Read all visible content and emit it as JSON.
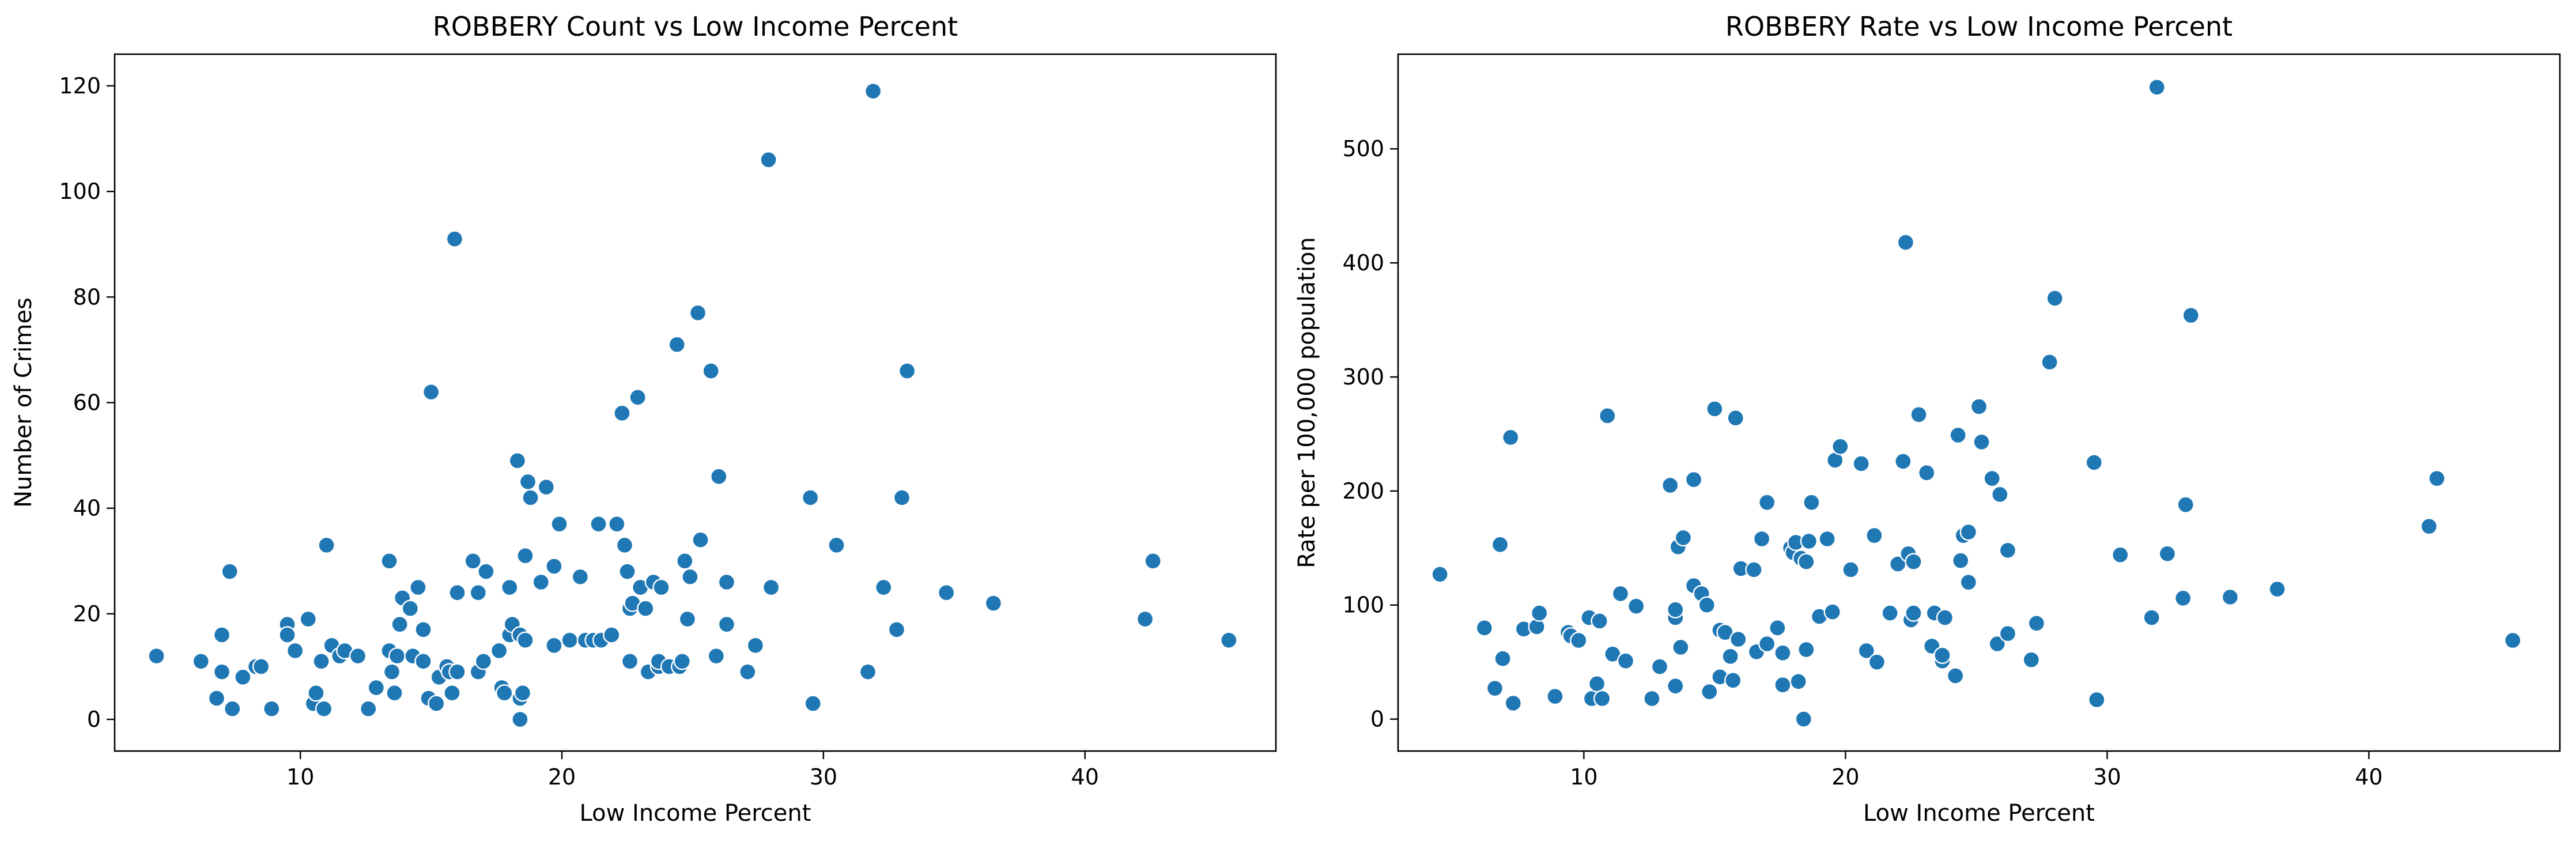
{
  "chart_data": [
    {
      "type": "scatter",
      "title": "ROBBERY Count vs Low Income Percent",
      "xlabel": "Low Income Percent",
      "ylabel": "Number of Crimes",
      "xlim": [
        2.9,
        47.3
      ],
      "ylim": [
        -6,
        126
      ],
      "xticks": [
        10,
        20,
        30,
        40
      ],
      "yticks": [
        0,
        20,
        40,
        60,
        80,
        100,
        120
      ],
      "grid": false,
      "color": "#1f77b4",
      "points": [
        {
          "x": 4.5,
          "y": 12
        },
        {
          "x": 6.2,
          "y": 11
        },
        {
          "x": 6.8,
          "y": 4
        },
        {
          "x": 7.0,
          "y": 16
        },
        {
          "x": 7.0,
          "y": 9
        },
        {
          "x": 7.3,
          "y": 28
        },
        {
          "x": 7.4,
          "y": 2
        },
        {
          "x": 7.8,
          "y": 8
        },
        {
          "x": 8.3,
          "y": 10
        },
        {
          "x": 8.5,
          "y": 10
        },
        {
          "x": 8.9,
          "y": 2
        },
        {
          "x": 9.5,
          "y": 18
        },
        {
          "x": 9.5,
          "y": 16
        },
        {
          "x": 9.8,
          "y": 13
        },
        {
          "x": 10.3,
          "y": 19
        },
        {
          "x": 10.5,
          "y": 3
        },
        {
          "x": 10.6,
          "y": 5
        },
        {
          "x": 10.8,
          "y": 11
        },
        {
          "x": 10.9,
          "y": 2
        },
        {
          "x": 11.0,
          "y": 33
        },
        {
          "x": 11.2,
          "y": 14
        },
        {
          "x": 11.5,
          "y": 12
        },
        {
          "x": 11.7,
          "y": 13
        },
        {
          "x": 12.2,
          "y": 12
        },
        {
          "x": 12.6,
          "y": 2
        },
        {
          "x": 12.9,
          "y": 6
        },
        {
          "x": 13.4,
          "y": 30
        },
        {
          "x": 13.4,
          "y": 13
        },
        {
          "x": 13.5,
          "y": 9
        },
        {
          "x": 13.6,
          "y": 5
        },
        {
          "x": 13.7,
          "y": 12
        },
        {
          "x": 13.8,
          "y": 18
        },
        {
          "x": 13.9,
          "y": 23
        },
        {
          "x": 14.2,
          "y": 21
        },
        {
          "x": 14.3,
          "y": 12
        },
        {
          "x": 14.5,
          "y": 25
        },
        {
          "x": 14.7,
          "y": 11
        },
        {
          "x": 14.7,
          "y": 17
        },
        {
          "x": 14.9,
          "y": 4
        },
        {
          "x": 15.0,
          "y": 62
        },
        {
          "x": 15.2,
          "y": 3
        },
        {
          "x": 15.3,
          "y": 8
        },
        {
          "x": 15.6,
          "y": 10
        },
        {
          "x": 15.7,
          "y": 9
        },
        {
          "x": 15.8,
          "y": 5
        },
        {
          "x": 15.9,
          "y": 91
        },
        {
          "x": 16.0,
          "y": 24
        },
        {
          "x": 16.0,
          "y": 9
        },
        {
          "x": 16.6,
          "y": 30
        },
        {
          "x": 16.8,
          "y": 24
        },
        {
          "x": 16.8,
          "y": 9
        },
        {
          "x": 17.0,
          "y": 11
        },
        {
          "x": 17.1,
          "y": 28
        },
        {
          "x": 17.6,
          "y": 13
        },
        {
          "x": 17.7,
          "y": 6
        },
        {
          "x": 17.8,
          "y": 5
        },
        {
          "x": 18.0,
          "y": 16
        },
        {
          "x": 18.0,
          "y": 25
        },
        {
          "x": 18.1,
          "y": 18
        },
        {
          "x": 18.3,
          "y": 49
        },
        {
          "x": 18.4,
          "y": 16
        },
        {
          "x": 18.4,
          "y": 4
        },
        {
          "x": 18.4,
          "y": 0
        },
        {
          "x": 18.5,
          "y": 5
        },
        {
          "x": 18.6,
          "y": 15
        },
        {
          "x": 18.6,
          "y": 31
        },
        {
          "x": 18.7,
          "y": 45
        },
        {
          "x": 18.8,
          "y": 42
        },
        {
          "x": 19.2,
          "y": 26
        },
        {
          "x": 19.4,
          "y": 44
        },
        {
          "x": 19.7,
          "y": 14
        },
        {
          "x": 19.7,
          "y": 29
        },
        {
          "x": 19.9,
          "y": 37
        },
        {
          "x": 20.3,
          "y": 15
        },
        {
          "x": 20.7,
          "y": 27
        },
        {
          "x": 20.9,
          "y": 15
        },
        {
          "x": 21.2,
          "y": 15
        },
        {
          "x": 21.4,
          "y": 37
        },
        {
          "x": 21.5,
          "y": 15
        },
        {
          "x": 21.9,
          "y": 16
        },
        {
          "x": 22.1,
          "y": 37
        },
        {
          "x": 22.3,
          "y": 58
        },
        {
          "x": 22.4,
          "y": 33
        },
        {
          "x": 22.5,
          "y": 28
        },
        {
          "x": 22.6,
          "y": 11
        },
        {
          "x": 22.6,
          "y": 21
        },
        {
          "x": 22.7,
          "y": 22
        },
        {
          "x": 22.9,
          "y": 61
        },
        {
          "x": 23.0,
          "y": 25
        },
        {
          "x": 23.2,
          "y": 21
        },
        {
          "x": 23.3,
          "y": 9
        },
        {
          "x": 23.5,
          "y": 26
        },
        {
          "x": 23.7,
          "y": 10
        },
        {
          "x": 23.7,
          "y": 11
        },
        {
          "x": 23.8,
          "y": 25
        },
        {
          "x": 24.1,
          "y": 10
        },
        {
          "x": 24.4,
          "y": 71
        },
        {
          "x": 24.5,
          "y": 10
        },
        {
          "x": 24.6,
          "y": 11
        },
        {
          "x": 24.7,
          "y": 30
        },
        {
          "x": 24.8,
          "y": 19
        },
        {
          "x": 24.9,
          "y": 27
        },
        {
          "x": 25.2,
          "y": 77
        },
        {
          "x": 25.3,
          "y": 34
        },
        {
          "x": 25.7,
          "y": 66
        },
        {
          "x": 25.9,
          "y": 12
        },
        {
          "x": 26.0,
          "y": 46
        },
        {
          "x": 26.3,
          "y": 26
        },
        {
          "x": 26.3,
          "y": 18
        },
        {
          "x": 27.1,
          "y": 9
        },
        {
          "x": 27.4,
          "y": 14
        },
        {
          "x": 27.9,
          "y": 106
        },
        {
          "x": 28.0,
          "y": 25
        },
        {
          "x": 29.5,
          "y": 42
        },
        {
          "x": 29.6,
          "y": 3
        },
        {
          "x": 30.5,
          "y": 33
        },
        {
          "x": 31.7,
          "y": 9
        },
        {
          "x": 31.9,
          "y": 119
        },
        {
          "x": 32.3,
          "y": 25
        },
        {
          "x": 32.8,
          "y": 17
        },
        {
          "x": 33.0,
          "y": 42
        },
        {
          "x": 33.2,
          "y": 66
        },
        {
          "x": 34.7,
          "y": 24
        },
        {
          "x": 36.5,
          "y": 22
        },
        {
          "x": 42.3,
          "y": 19
        },
        {
          "x": 42.6,
          "y": 30
        },
        {
          "x": 45.5,
          "y": 15
        }
      ]
    },
    {
      "type": "scatter",
      "title": "ROBBERY Rate vs Low Income Percent",
      "xlabel": "Low Income Percent",
      "ylabel": "Rate per 100,000 population",
      "xlim": [
        2.9,
        47.3
      ],
      "ylim": [
        -28,
        583
      ],
      "xticks": [
        10,
        20,
        30,
        40
      ],
      "yticks": [
        0,
        100,
        200,
        300,
        400,
        500
      ],
      "grid": false,
      "color": "#1f77b4",
      "points": [
        {
          "x": 4.5,
          "y": 127
        },
        {
          "x": 6.2,
          "y": 80
        },
        {
          "x": 6.6,
          "y": 27
        },
        {
          "x": 6.8,
          "y": 153
        },
        {
          "x": 6.9,
          "y": 53
        },
        {
          "x": 7.2,
          "y": 247
        },
        {
          "x": 7.3,
          "y": 14
        },
        {
          "x": 7.7,
          "y": 79
        },
        {
          "x": 8.2,
          "y": 81
        },
        {
          "x": 8.3,
          "y": 93
        },
        {
          "x": 8.9,
          "y": 20
        },
        {
          "x": 9.4,
          "y": 76
        },
        {
          "x": 9.5,
          "y": 73
        },
        {
          "x": 9.8,
          "y": 69
        },
        {
          "x": 10.2,
          "y": 89
        },
        {
          "x": 10.3,
          "y": 18
        },
        {
          "x": 10.5,
          "y": 31
        },
        {
          "x": 10.6,
          "y": 86
        },
        {
          "x": 10.7,
          "y": 18
        },
        {
          "x": 10.9,
          "y": 266
        },
        {
          "x": 11.1,
          "y": 57
        },
        {
          "x": 11.4,
          "y": 110
        },
        {
          "x": 11.6,
          "y": 51
        },
        {
          "x": 12.0,
          "y": 99
        },
        {
          "x": 12.6,
          "y": 18
        },
        {
          "x": 12.9,
          "y": 46
        },
        {
          "x": 13.3,
          "y": 205
        },
        {
          "x": 13.5,
          "y": 89
        },
        {
          "x": 13.5,
          "y": 96
        },
        {
          "x": 13.5,
          "y": 29
        },
        {
          "x": 13.6,
          "y": 151
        },
        {
          "x": 13.7,
          "y": 63
        },
        {
          "x": 13.8,
          "y": 159
        },
        {
          "x": 14.2,
          "y": 210
        },
        {
          "x": 14.2,
          "y": 117
        },
        {
          "x": 14.5,
          "y": 110
        },
        {
          "x": 14.7,
          "y": 100
        },
        {
          "x": 14.8,
          "y": 24
        },
        {
          "x": 15.0,
          "y": 272
        },
        {
          "x": 15.2,
          "y": 37
        },
        {
          "x": 15.2,
          "y": 78
        },
        {
          "x": 15.4,
          "y": 76
        },
        {
          "x": 15.6,
          "y": 55
        },
        {
          "x": 15.7,
          "y": 34
        },
        {
          "x": 15.8,
          "y": 264
        },
        {
          "x": 15.9,
          "y": 70
        },
        {
          "x": 16.0,
          "y": 132
        },
        {
          "x": 16.5,
          "y": 131
        },
        {
          "x": 16.6,
          "y": 59
        },
        {
          "x": 16.8,
          "y": 158
        },
        {
          "x": 17.0,
          "y": 190
        },
        {
          "x": 17.0,
          "y": 66
        },
        {
          "x": 17.4,
          "y": 80
        },
        {
          "x": 17.6,
          "y": 30
        },
        {
          "x": 17.6,
          "y": 58
        },
        {
          "x": 17.9,
          "y": 150
        },
        {
          "x": 18.0,
          "y": 146
        },
        {
          "x": 18.1,
          "y": 155
        },
        {
          "x": 18.2,
          "y": 33
        },
        {
          "x": 18.3,
          "y": 141
        },
        {
          "x": 18.4,
          "y": 0
        },
        {
          "x": 18.5,
          "y": 138
        },
        {
          "x": 18.5,
          "y": 61
        },
        {
          "x": 18.6,
          "y": 156
        },
        {
          "x": 18.7,
          "y": 190
        },
        {
          "x": 19.0,
          "y": 90
        },
        {
          "x": 19.3,
          "y": 158
        },
        {
          "x": 19.5,
          "y": 94
        },
        {
          "x": 19.6,
          "y": 227
        },
        {
          "x": 19.8,
          "y": 239
        },
        {
          "x": 20.2,
          "y": 131
        },
        {
          "x": 20.6,
          "y": 224
        },
        {
          "x": 20.8,
          "y": 60
        },
        {
          "x": 21.1,
          "y": 161
        },
        {
          "x": 21.2,
          "y": 50
        },
        {
          "x": 21.7,
          "y": 93
        },
        {
          "x": 22.0,
          "y": 136
        },
        {
          "x": 22.2,
          "y": 226
        },
        {
          "x": 22.3,
          "y": 418
        },
        {
          "x": 22.4,
          "y": 145
        },
        {
          "x": 22.5,
          "y": 87
        },
        {
          "x": 22.6,
          "y": 93
        },
        {
          "x": 22.6,
          "y": 138
        },
        {
          "x": 22.8,
          "y": 267
        },
        {
          "x": 23.1,
          "y": 216
        },
        {
          "x": 23.3,
          "y": 64
        },
        {
          "x": 23.4,
          "y": 93
        },
        {
          "x": 23.7,
          "y": 51
        },
        {
          "x": 23.7,
          "y": 56
        },
        {
          "x": 23.8,
          "y": 89
        },
        {
          "x": 24.2,
          "y": 38
        },
        {
          "x": 24.3,
          "y": 249
        },
        {
          "x": 24.4,
          "y": 139
        },
        {
          "x": 24.5,
          "y": 161
        },
        {
          "x": 24.7,
          "y": 164
        },
        {
          "x": 24.7,
          "y": 120
        },
        {
          "x": 25.1,
          "y": 274
        },
        {
          "x": 25.2,
          "y": 243
        },
        {
          "x": 25.6,
          "y": 211
        },
        {
          "x": 25.8,
          "y": 66
        },
        {
          "x": 25.9,
          "y": 197
        },
        {
          "x": 26.2,
          "y": 148
        },
        {
          "x": 26.2,
          "y": 75
        },
        {
          "x": 27.1,
          "y": 52
        },
        {
          "x": 27.3,
          "y": 84
        },
        {
          "x": 27.8,
          "y": 313
        },
        {
          "x": 28.0,
          "y": 369
        },
        {
          "x": 29.5,
          "y": 225
        },
        {
          "x": 29.6,
          "y": 17
        },
        {
          "x": 30.5,
          "y": 144
        },
        {
          "x": 31.7,
          "y": 89
        },
        {
          "x": 31.9,
          "y": 554
        },
        {
          "x": 32.3,
          "y": 145
        },
        {
          "x": 32.9,
          "y": 106
        },
        {
          "x": 33.0,
          "y": 188
        },
        {
          "x": 33.2,
          "y": 354
        },
        {
          "x": 34.7,
          "y": 107
        },
        {
          "x": 36.5,
          "y": 114
        },
        {
          "x": 42.3,
          "y": 169
        },
        {
          "x": 42.6,
          "y": 211
        },
        {
          "x": 45.5,
          "y": 69
        }
      ]
    }
  ]
}
